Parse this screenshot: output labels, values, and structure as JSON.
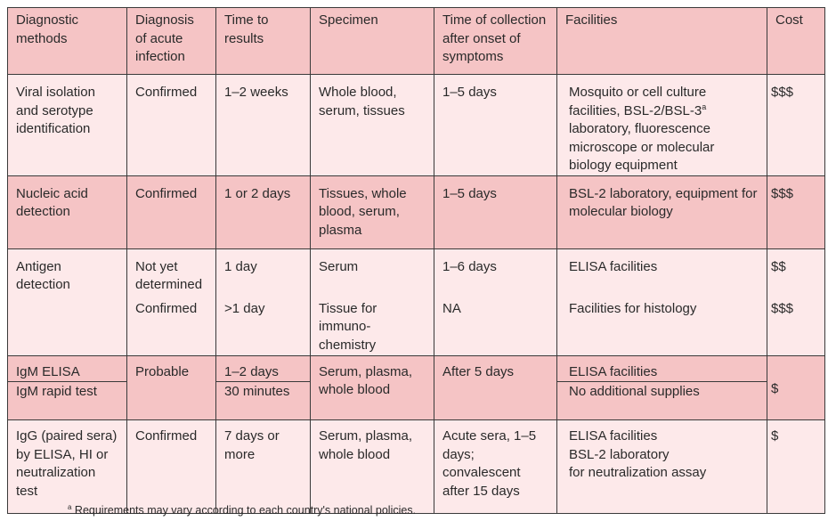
{
  "headers": [
    "Diagnostic methods",
    "Diagnosis of acute infection",
    "Time to results",
    "Specimen",
    "Time of collection after onset of symptoms",
    "Facilities",
    "Cost"
  ],
  "viral": {
    "method": "Viral isolation and serotype identification",
    "diagnosis": "Confirmed",
    "time": "1–2 weeks",
    "specimen": "Whole blood, serum, tissues",
    "collection": "1–5 days",
    "facilities_a": "Mosquito or cell culture facilities, BSL-2/BSL-3",
    "facilities_sup": "a",
    "facilities_b": " laboratory, fluorescence microscope or molecular biology equipment",
    "cost": "$$$"
  },
  "nucleic": {
    "method": "Nucleic acid detection",
    "diagnosis": "Confirmed",
    "time": "1 or 2 days",
    "specimen": "Tissues, whole blood, serum, plasma",
    "collection": "1–5 days",
    "facilities": "BSL-2 laboratory, equipment for molecular biology",
    "cost": "$$$"
  },
  "antigen": {
    "method": "Antigen detection",
    "diagnosis": [
      "Not yet determined",
      "Confirmed"
    ],
    "time": [
      "1 day",
      ">1 day"
    ],
    "specimen": [
      "Serum",
      "Tissue for immuno-chemistry"
    ],
    "collection": [
      "1–6 days",
      "NA"
    ],
    "facilities": [
      "ELISA facilities",
      "Facilities for histology"
    ],
    "cost": [
      "$$",
      "$$$"
    ]
  },
  "igm": {
    "method": [
      "IgM ELISA",
      "IgM rapid test"
    ],
    "diagnosis": "Probable",
    "time": [
      "1–2 days",
      "30 minutes"
    ],
    "specimen": "Serum, plasma, whole blood",
    "collection": "After 5 days",
    "facilities": [
      "ELISA facilities",
      "No additional supplies"
    ],
    "cost": "$"
  },
  "igg": {
    "method": "IgG (paired sera) by ELISA, HI or neutralization test",
    "diagnosis": "Confirmed",
    "time": "7 days or more",
    "specimen": "Serum, plasma, whole blood",
    "collection": "Acute sera, 1–5 days; convalescent after 15 days",
    "facilities": [
      "ELISA facilities",
      "BSL-2 laboratory",
      "for neutralization assay"
    ],
    "cost": "$"
  },
  "footnote_sup": "a",
  "footnote": " Requirements may vary according to each country's national policies."
}
